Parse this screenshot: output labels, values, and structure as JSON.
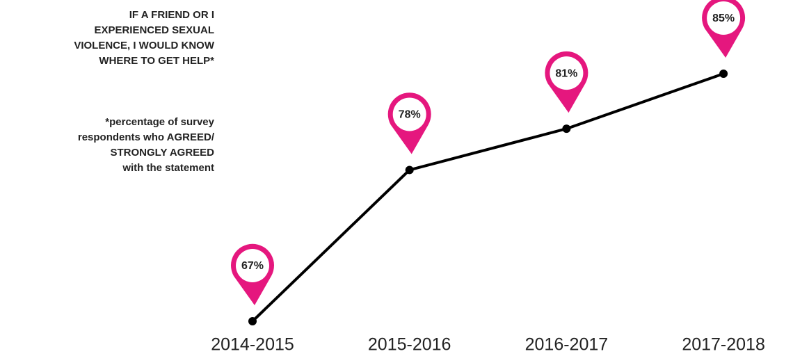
{
  "chart_data": {
    "type": "line",
    "title": [
      "IF A FRIEND OR I",
      "EXPERIENCED SEXUAL",
      "VIOLENCE, I WOULD KNOW",
      "WHERE TO GET HELP*"
    ],
    "subtitle": [
      "*percentage of survey",
      "respondents who AGREED/",
      "STRONGLY AGREED",
      "with the statement"
    ],
    "categories": [
      "2014-2015",
      "2015-2016",
      "2016-2017",
      "2017-2018"
    ],
    "values": [
      67,
      78,
      81,
      85
    ],
    "value_labels": [
      "67%",
      "78%",
      "81%",
      "85%"
    ],
    "color": "#000000",
    "marker_color": "#e5177e"
  }
}
